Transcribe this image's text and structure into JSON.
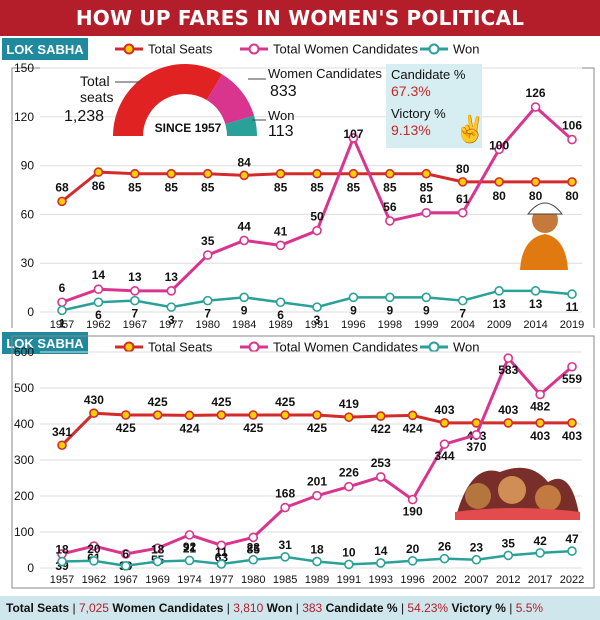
{
  "title": "HOW UP FARES IN WOMEN'S POLITICAL EMPOWERMENT",
  "colors": {
    "seats": "#d32b2b",
    "women": "#d9358f",
    "won": "#2aa198",
    "title_bg": "#b41e2a",
    "section_bg": "#1f8a9e",
    "footer_bg": "#cfe6ec",
    "marker_fill": "#f5d000"
  },
  "chart_data": [
    {
      "type": "line",
      "section_label": "LOK SABHA",
      "categories": [
        "1957",
        "1962",
        "1967",
        "1977",
        "1980",
        "1984",
        "1989",
        "1991",
        "1996",
        "1998",
        "1999",
        "2004",
        "2009",
        "2014",
        "2019"
      ],
      "series": [
        {
          "name": "Total Seats",
          "values": [
            68,
            86,
            85,
            85,
            85,
            84,
            85,
            85,
            85,
            85,
            85,
            80,
            80,
            80,
            80
          ]
        },
        {
          "name": "Total Women Candidates",
          "values": [
            6,
            14,
            13,
            13,
            35,
            44,
            41,
            50,
            107,
            56,
            61,
            61,
            100,
            126,
            106
          ]
        },
        {
          "name": "Won",
          "values": [
            1,
            6,
            7,
            3,
            7,
            9,
            6,
            3,
            9,
            9,
            9,
            7,
            13,
            13,
            11
          ]
        }
      ],
      "ylim": [
        0,
        150
      ],
      "yticks": [
        "0",
        "30",
        "60",
        "90",
        "120",
        "150"
      ],
      "donut": {
        "seats_label": "Total seats",
        "seats_value": "1,238",
        "women_label": "Women Candidates",
        "women_value": "833",
        "won_label": "Won",
        "won_value": "113",
        "center_label": "SINCE 1957",
        "seats_total": 1238,
        "women_total": 833,
        "won_total": 113
      },
      "stats": {
        "candidate_label": "Candidate %",
        "candidate_value": "67.3%",
        "victory_label": "Victory %",
        "victory_value": "9.13%"
      }
    },
    {
      "type": "line",
      "section_label": "LOK SABHA",
      "categories": [
        "1957",
        "1962",
        "1967",
        "1969",
        "1974",
        "1977",
        "1980",
        "1985",
        "1989",
        "1991",
        "1993",
        "1996",
        "2002",
        "2007",
        "2012",
        "2017",
        "2022"
      ],
      "series": [
        {
          "name": "Total Seats",
          "values": [
            341,
            430,
            425,
            425,
            424,
            425,
            425,
            425,
            425,
            419,
            422,
            424,
            403,
            403,
            403,
            403,
            403
          ]
        },
        {
          "name": "Total Women Candidates",
          "values": [
            39,
            61,
            39,
            55,
            92,
            63,
            85,
            168,
            201,
            226,
            253,
            190,
            344,
            370,
            583,
            482,
            559
          ]
        },
        {
          "name": "Won",
          "values": [
            18,
            20,
            6,
            18,
            21,
            11,
            23,
            31,
            18,
            10,
            14,
            20,
            26,
            23,
            35,
            42,
            47
          ]
        }
      ],
      "ylim": [
        0,
        600
      ],
      "yticks": [
        "0",
        "100",
        "200",
        "300",
        "400",
        "500",
        "600"
      ]
    }
  ],
  "footer": [
    {
      "label": "Total Seats",
      "value": "7,025"
    },
    {
      "label": "Women Candidates",
      "value": "3,810"
    },
    {
      "label": "Won",
      "value": "383"
    },
    {
      "label": "Candidate %",
      "value": "54.23%"
    },
    {
      "label": "Victory %",
      "value": "5.5%"
    }
  ]
}
